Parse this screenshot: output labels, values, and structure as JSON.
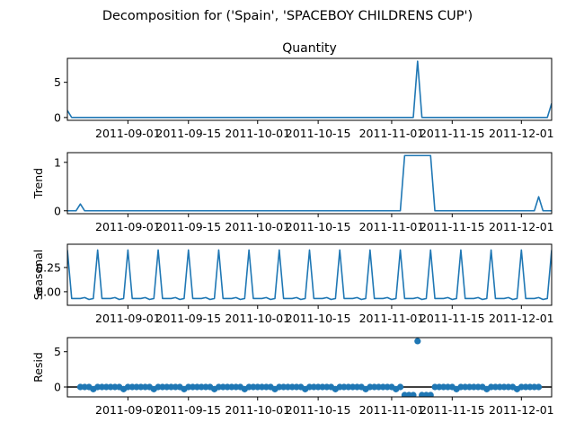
{
  "suptitle": "Decomposition for ('Spain', 'SPACEBOY CHILDRENS CUP')",
  "x_tick_labels": [
    "2011-09-01",
    "2011-09-15",
    "2011-10-01",
    "2011-10-15",
    "2011-11-01",
    "2011-11-15",
    "2011-12-01"
  ],
  "colors": {
    "series": "#1f77b4"
  },
  "chart_data": [
    {
      "type": "line",
      "title": "Quantity",
      "ylabel": "",
      "x": {
        "start": "2011-08-18",
        "end": "2011-12-08",
        "step_days": 1
      },
      "ylim": [
        -0.4,
        8.4
      ],
      "yticks": [
        0,
        5
      ],
      "series": [
        {
          "default": 0,
          "points": [
            [
              "2011-08-18",
              1
            ],
            [
              "2011-08-19",
              0
            ],
            [
              "2011-11-06",
              0
            ],
            [
              "2011-11-07",
              8
            ],
            [
              "2011-11-08",
              0
            ],
            [
              "2011-12-07",
              0
            ],
            [
              "2011-12-08",
              2
            ]
          ]
        }
      ]
    },
    {
      "type": "line",
      "title": "",
      "ylabel": "Trend",
      "x": {
        "start": "2011-08-18",
        "end": "2011-12-08",
        "step_days": 1
      },
      "ylim": [
        -0.06,
        1.2
      ],
      "yticks": [
        0,
        1
      ],
      "series": [
        {
          "default": 0,
          "points": [
            [
              "2011-08-21",
              0.14
            ],
            [
              "2011-08-22",
              0
            ],
            [
              "2011-11-03",
              0
            ],
            [
              "2011-11-04",
              1.14
            ],
            [
              "2011-11-10",
              1.14
            ],
            [
              "2011-11-11",
              0
            ],
            [
              "2011-12-04",
              0
            ],
            [
              "2011-12-05",
              0.29
            ]
          ]
        }
      ]
    },
    {
      "type": "line",
      "title": "",
      "ylabel": "Seasonal",
      "x": {
        "start": "2011-08-18",
        "end": "2011-12-08",
        "step_days": 1
      },
      "ylim": [
        -0.14,
        0.49
      ],
      "yticks": [
        0.0,
        0.25
      ],
      "ytick_labels": [
        "0.00",
        "0.25"
      ],
      "periodic": {
        "period_days": 7,
        "pattern": [
          0.43,
          -0.07,
          -0.07,
          -0.07,
          -0.06,
          -0.08,
          -0.07
        ]
      }
    },
    {
      "type": "scatter",
      "title": "",
      "ylabel": "Resid",
      "x": {
        "start": "2011-08-21",
        "end": "2011-12-05",
        "step_days": 1
      },
      "ylim": [
        -1.4,
        7.0
      ],
      "yticks": [
        0,
        5
      ],
      "zero_line": true,
      "series": [
        {
          "default": 0.0,
          "points": [
            [
              "2011-08-24",
              -0.3
            ],
            [
              "2011-08-31",
              -0.3
            ],
            [
              "2011-09-07",
              -0.3
            ],
            [
              "2011-09-14",
              -0.3
            ],
            [
              "2011-09-21",
              -0.3
            ],
            [
              "2011-09-28",
              -0.3
            ],
            [
              "2011-10-05",
              -0.3
            ],
            [
              "2011-10-12",
              -0.3
            ],
            [
              "2011-10-19",
              -0.3
            ],
            [
              "2011-10-26",
              -0.3
            ],
            [
              "2011-11-02",
              -0.3
            ],
            [
              "2011-11-04",
              -1.15
            ],
            [
              "2011-11-05",
              -1.15
            ],
            [
              "2011-11-06",
              -1.15
            ],
            [
              "2011-11-07",
              6.5
            ],
            [
              "2011-11-08",
              -1.15
            ],
            [
              "2011-11-09",
              -1.15
            ],
            [
              "2011-11-10",
              -1.15
            ],
            [
              "2011-11-16",
              -0.3
            ],
            [
              "2011-11-23",
              -0.3
            ],
            [
              "2011-11-30",
              -0.3
            ]
          ]
        }
      ]
    }
  ]
}
